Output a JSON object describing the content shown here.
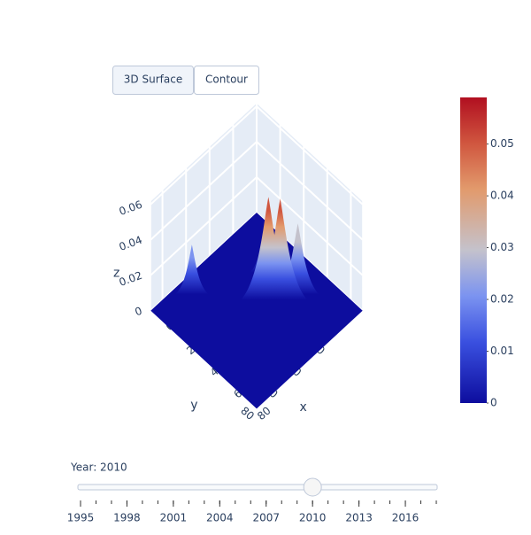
{
  "chart_data": {
    "type": "surface",
    "buttons": [
      "3D Surface",
      "Contour"
    ],
    "x_label": "x",
    "y_label": "y",
    "z_label": "z",
    "xlim": [
      0,
      90
    ],
    "ylim": [
      0,
      90
    ],
    "zlim": [
      0,
      0.062
    ],
    "xticks": [
      0,
      20,
      40,
      60,
      80
    ],
    "yticks": [
      20,
      40,
      60,
      80
    ],
    "zticks": [
      0,
      0.02,
      0.04,
      0.06
    ],
    "peaks": [
      {
        "x": 55,
        "y": 20,
        "z": 0.04
      },
      {
        "x": 30,
        "y": 25,
        "z": 0.02
      },
      {
        "x": 50,
        "y": 30,
        "z": 0.057
      },
      {
        "x": 45,
        "y": 35,
        "z": 0.058
      },
      {
        "x": 10,
        "y": 65,
        "z": 0.028
      }
    ],
    "colorscale": [
      [
        0,
        "#0d0d9e"
      ],
      [
        0.2,
        "#3a50e0"
      ],
      [
        0.35,
        "#7b93f0"
      ],
      [
        0.5,
        "#c4c2cc"
      ],
      [
        0.7,
        "#e29a6c"
      ],
      [
        0.85,
        "#d0563f"
      ],
      [
        1,
        "#b10f20"
      ]
    ],
    "cbar_lim": [
      0,
      0.059
    ],
    "cbar_ticks": [
      0,
      0.01,
      0.02,
      0.03,
      0.04,
      0.05
    ],
    "slider": {
      "label": "Year: 2010",
      "range": [
        1995,
        2018
      ],
      "value": 2010,
      "ticks": [
        1995,
        1998,
        2001,
        2004,
        2007,
        2010,
        2013,
        2016
      ]
    }
  }
}
